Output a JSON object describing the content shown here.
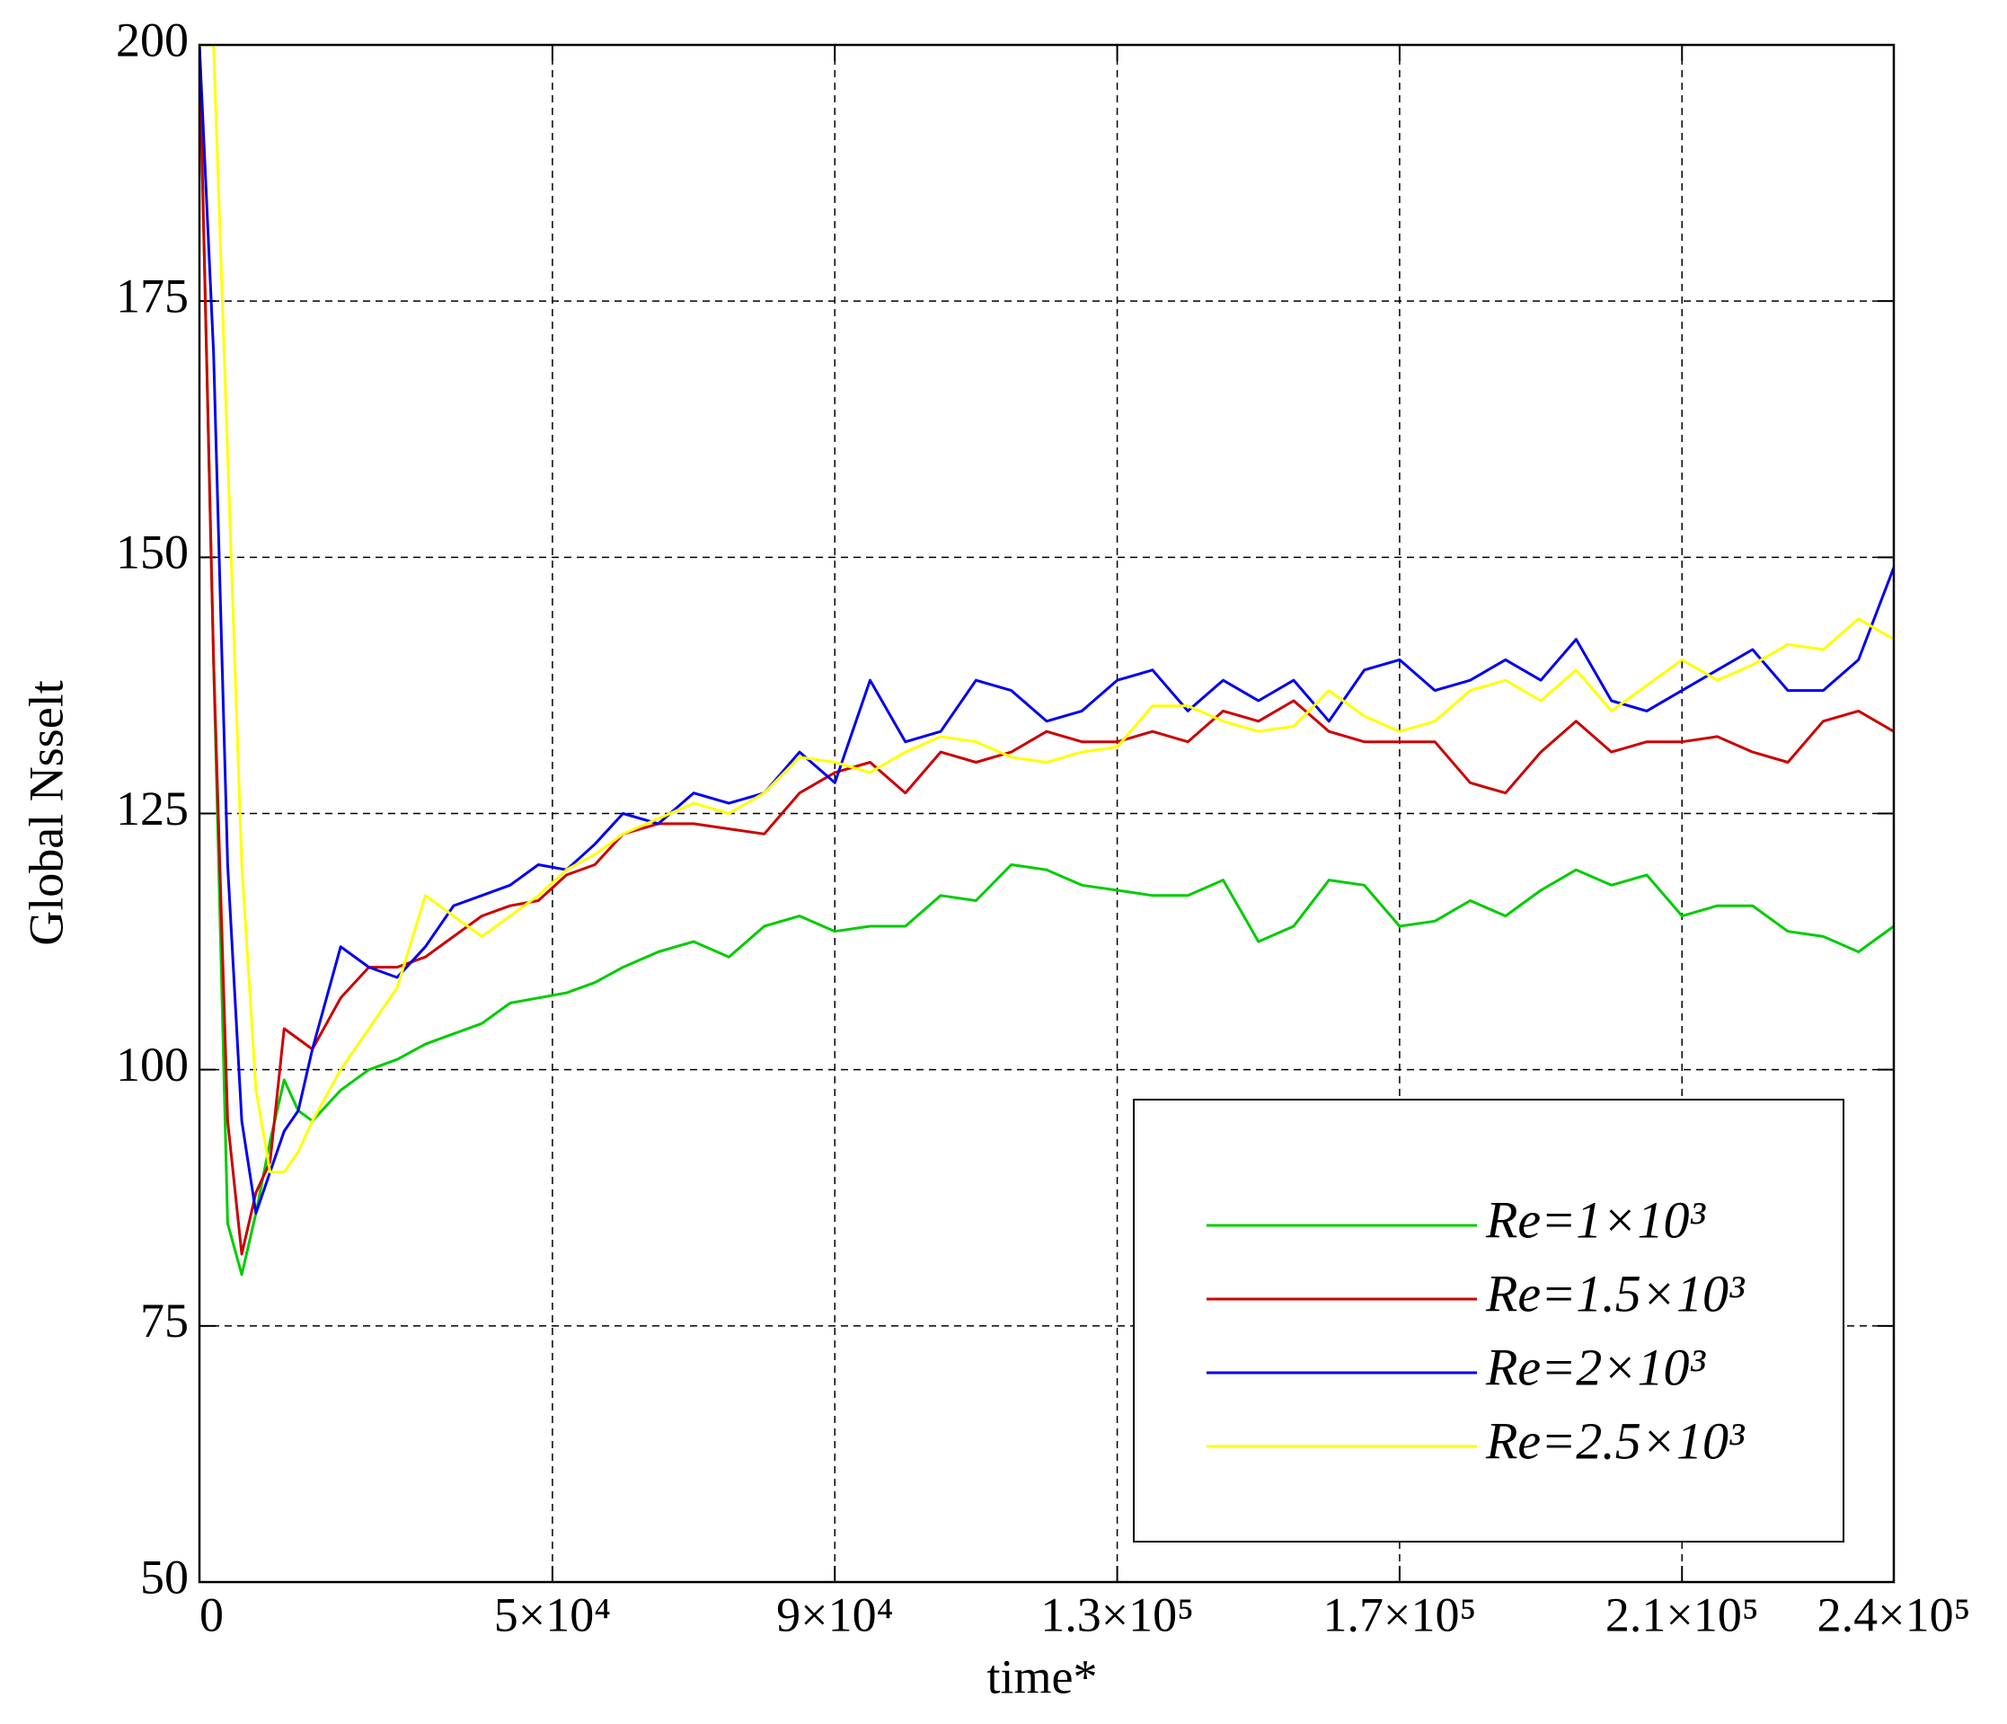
{
  "chart_data": {
    "type": "line",
    "x_label": "time*",
    "y_label": "Global Nsselt",
    "x": [
      0,
      2000,
      4000,
      6000,
      8000,
      10000,
      12000,
      14000,
      16000,
      20000,
      24000,
      28000,
      32000,
      36000,
      40000,
      44000,
      48000,
      52000,
      56000,
      60000,
      65000,
      70000,
      75000,
      80000,
      85000,
      90000,
      95000,
      100000,
      105000,
      110000,
      115000,
      120000,
      125000,
      130000,
      135000,
      140000,
      145000,
      150000,
      155000,
      160000,
      165000,
      170000,
      175000,
      180000,
      185000,
      190000,
      195000,
      200000,
      205000,
      210000,
      215000,
      220000,
      225000,
      230000,
      235000,
      240000
    ],
    "series": [
      {
        "name": "Re=1×10³",
        "color": "#00cc00",
        "values": [
          200,
          140,
          85,
          80,
          86,
          93,
          99,
          96,
          95,
          98,
          100,
          101,
          102.5,
          103.5,
          104.5,
          106.5,
          107,
          107.5,
          108.5,
          110,
          111.5,
          112.5,
          111,
          114,
          115,
          113.5,
          114,
          114,
          117,
          116.5,
          120,
          119.5,
          118,
          117.5,
          117,
          117,
          118.5,
          112.5,
          114,
          118.5,
          118,
          114,
          114.5,
          116.5,
          115,
          117.5,
          119.5,
          118,
          119,
          115,
          116,
          116,
          113.5,
          113,
          111.5,
          114
        ]
      },
      {
        "name": "Re=1.5×10³",
        "color": "#cc0000",
        "values": [
          200,
          140,
          95,
          82,
          88,
          91,
          104,
          103,
          102,
          107,
          110,
          110,
          111,
          113,
          115,
          116,
          116.5,
          119,
          120,
          123,
          124,
          124,
          123.5,
          123,
          127,
          129,
          130,
          127,
          131,
          130,
          131,
          133,
          132,
          132,
          133,
          132,
          135,
          134,
          136,
          133,
          132,
          132,
          132,
          128,
          127,
          131,
          134,
          131,
          132,
          132,
          132.5,
          131,
          130,
          134,
          135,
          133
        ]
      },
      {
        "name": "Re=2×10³",
        "color": "#0000ee",
        "values": [
          200,
          170,
          120,
          95,
          86,
          90,
          94,
          96,
          102,
          112,
          110,
          109,
          112,
          116,
          117,
          118,
          120,
          119.5,
          122,
          125,
          124,
          127,
          126,
          127,
          131,
          128,
          138,
          132,
          133,
          138,
          137,
          134,
          135,
          138,
          139,
          135,
          138,
          136,
          138,
          134,
          139,
          140,
          137,
          138,
          140,
          138,
          142,
          136,
          135,
          137,
          139,
          141,
          137,
          137,
          140,
          149
        ]
      },
      {
        "name": "Re=2.5×10³",
        "color": "#ffff00",
        "values": [
          200,
          200,
          160,
          120,
          98,
          90,
          90,
          92,
          95,
          100,
          104,
          108,
          117,
          115,
          113,
          115,
          117,
          119.5,
          121,
          123,
          124.5,
          126,
          125,
          127,
          130.5,
          130,
          129,
          131,
          132.5,
          132,
          130.5,
          130,
          131,
          131.5,
          135.5,
          135.5,
          134,
          133,
          133.5,
          137,
          134.5,
          133,
          134,
          137,
          138,
          136,
          139,
          135,
          137.5,
          140,
          138,
          139.5,
          141.5,
          141,
          144,
          142
        ]
      }
    ],
    "xlim": [
      0,
      240000
    ],
    "xticks": [
      0,
      {
        "value": 50000,
        "label": "5×10⁴"
      },
      {
        "value": 90000,
        "label": "9×10⁴"
      },
      {
        "value": 130000,
        "label": "1.3×10⁵"
      },
      {
        "value": 170000,
        "label": "1.7×10⁵"
      },
      {
        "value": 210000,
        "label": "2.1×10⁵"
      },
      {
        "value": 240000,
        "label": "2.4×10⁵"
      }
    ],
    "ylim": [
      50,
      200
    ],
    "yticks": [
      50,
      75,
      100,
      125,
      150,
      175,
      200
    ],
    "grid": true,
    "legend": "lower right"
  }
}
